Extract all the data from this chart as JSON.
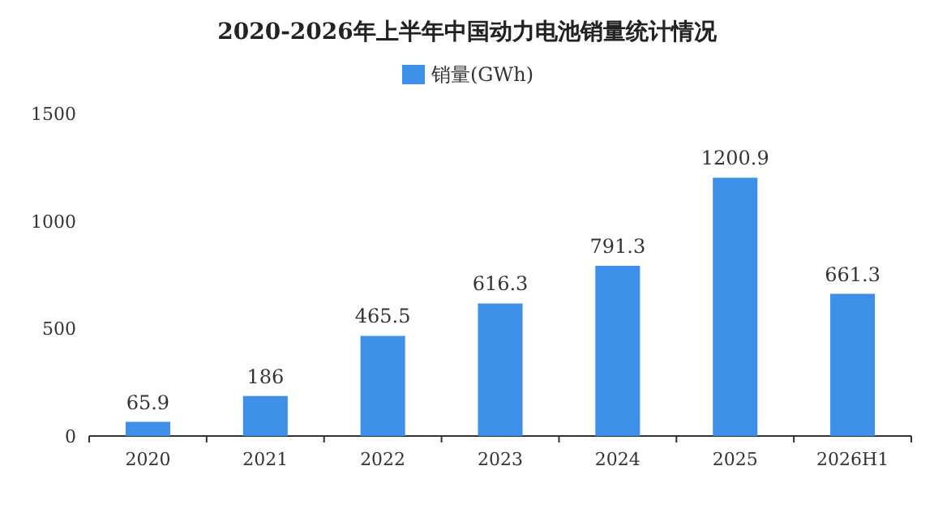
{
  "chart_data": {
    "type": "bar",
    "title": "2020-2026年上半年中国动力电池销量统计情况",
    "categories": [
      "2020",
      "2021",
      "2022",
      "2023",
      "2024",
      "2025",
      "2026H1"
    ],
    "series": [
      {
        "name": "销量(GWh)",
        "color": "#3d8fe8",
        "values": [
          65.9,
          186,
          465.5,
          616.3,
          791.3,
          1200.9,
          661.3
        ]
      }
    ],
    "ylim": [
      0,
      1500
    ],
    "yticks": [
      0,
      500,
      1000,
      1500
    ],
    "data_labels": true,
    "legend": "top",
    "grid": false
  }
}
